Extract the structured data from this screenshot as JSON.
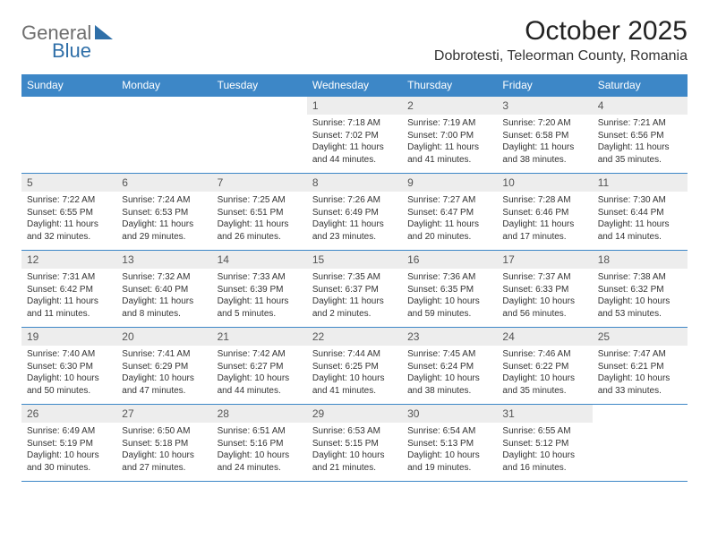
{
  "logo": {
    "word1": "General",
    "word2": "Blue"
  },
  "title": "October 2025",
  "location": "Dobrotesti, Teleorman County, Romania",
  "colors": {
    "header_bg": "#3d87c7",
    "header_text": "#ffffff",
    "daynum_bg": "#ededed",
    "border": "#3d87c7",
    "body_text": "#333333",
    "logo_general": "#6e6e6e",
    "logo_blue": "#2f6fa8"
  },
  "weekdays": [
    "Sunday",
    "Monday",
    "Tuesday",
    "Wednesday",
    "Thursday",
    "Friday",
    "Saturday"
  ],
  "weeks": [
    [
      {
        "n": "",
        "sr": "",
        "ss": "",
        "dl": ""
      },
      {
        "n": "",
        "sr": "",
        "ss": "",
        "dl": ""
      },
      {
        "n": "",
        "sr": "",
        "ss": "",
        "dl": ""
      },
      {
        "n": "1",
        "sr": "Sunrise: 7:18 AM",
        "ss": "Sunset: 7:02 PM",
        "dl": "Daylight: 11 hours and 44 minutes."
      },
      {
        "n": "2",
        "sr": "Sunrise: 7:19 AM",
        "ss": "Sunset: 7:00 PM",
        "dl": "Daylight: 11 hours and 41 minutes."
      },
      {
        "n": "3",
        "sr": "Sunrise: 7:20 AM",
        "ss": "Sunset: 6:58 PM",
        "dl": "Daylight: 11 hours and 38 minutes."
      },
      {
        "n": "4",
        "sr": "Sunrise: 7:21 AM",
        "ss": "Sunset: 6:56 PM",
        "dl": "Daylight: 11 hours and 35 minutes."
      }
    ],
    [
      {
        "n": "5",
        "sr": "Sunrise: 7:22 AM",
        "ss": "Sunset: 6:55 PM",
        "dl": "Daylight: 11 hours and 32 minutes."
      },
      {
        "n": "6",
        "sr": "Sunrise: 7:24 AM",
        "ss": "Sunset: 6:53 PM",
        "dl": "Daylight: 11 hours and 29 minutes."
      },
      {
        "n": "7",
        "sr": "Sunrise: 7:25 AM",
        "ss": "Sunset: 6:51 PM",
        "dl": "Daylight: 11 hours and 26 minutes."
      },
      {
        "n": "8",
        "sr": "Sunrise: 7:26 AM",
        "ss": "Sunset: 6:49 PM",
        "dl": "Daylight: 11 hours and 23 minutes."
      },
      {
        "n": "9",
        "sr": "Sunrise: 7:27 AM",
        "ss": "Sunset: 6:47 PM",
        "dl": "Daylight: 11 hours and 20 minutes."
      },
      {
        "n": "10",
        "sr": "Sunrise: 7:28 AM",
        "ss": "Sunset: 6:46 PM",
        "dl": "Daylight: 11 hours and 17 minutes."
      },
      {
        "n": "11",
        "sr": "Sunrise: 7:30 AM",
        "ss": "Sunset: 6:44 PM",
        "dl": "Daylight: 11 hours and 14 minutes."
      }
    ],
    [
      {
        "n": "12",
        "sr": "Sunrise: 7:31 AM",
        "ss": "Sunset: 6:42 PM",
        "dl": "Daylight: 11 hours and 11 minutes."
      },
      {
        "n": "13",
        "sr": "Sunrise: 7:32 AM",
        "ss": "Sunset: 6:40 PM",
        "dl": "Daylight: 11 hours and 8 minutes."
      },
      {
        "n": "14",
        "sr": "Sunrise: 7:33 AM",
        "ss": "Sunset: 6:39 PM",
        "dl": "Daylight: 11 hours and 5 minutes."
      },
      {
        "n": "15",
        "sr": "Sunrise: 7:35 AM",
        "ss": "Sunset: 6:37 PM",
        "dl": "Daylight: 11 hours and 2 minutes."
      },
      {
        "n": "16",
        "sr": "Sunrise: 7:36 AM",
        "ss": "Sunset: 6:35 PM",
        "dl": "Daylight: 10 hours and 59 minutes."
      },
      {
        "n": "17",
        "sr": "Sunrise: 7:37 AM",
        "ss": "Sunset: 6:33 PM",
        "dl": "Daylight: 10 hours and 56 minutes."
      },
      {
        "n": "18",
        "sr": "Sunrise: 7:38 AM",
        "ss": "Sunset: 6:32 PM",
        "dl": "Daylight: 10 hours and 53 minutes."
      }
    ],
    [
      {
        "n": "19",
        "sr": "Sunrise: 7:40 AM",
        "ss": "Sunset: 6:30 PM",
        "dl": "Daylight: 10 hours and 50 minutes."
      },
      {
        "n": "20",
        "sr": "Sunrise: 7:41 AM",
        "ss": "Sunset: 6:29 PM",
        "dl": "Daylight: 10 hours and 47 minutes."
      },
      {
        "n": "21",
        "sr": "Sunrise: 7:42 AM",
        "ss": "Sunset: 6:27 PM",
        "dl": "Daylight: 10 hours and 44 minutes."
      },
      {
        "n": "22",
        "sr": "Sunrise: 7:44 AM",
        "ss": "Sunset: 6:25 PM",
        "dl": "Daylight: 10 hours and 41 minutes."
      },
      {
        "n": "23",
        "sr": "Sunrise: 7:45 AM",
        "ss": "Sunset: 6:24 PM",
        "dl": "Daylight: 10 hours and 38 minutes."
      },
      {
        "n": "24",
        "sr": "Sunrise: 7:46 AM",
        "ss": "Sunset: 6:22 PM",
        "dl": "Daylight: 10 hours and 35 minutes."
      },
      {
        "n": "25",
        "sr": "Sunrise: 7:47 AM",
        "ss": "Sunset: 6:21 PM",
        "dl": "Daylight: 10 hours and 33 minutes."
      }
    ],
    [
      {
        "n": "26",
        "sr": "Sunrise: 6:49 AM",
        "ss": "Sunset: 5:19 PM",
        "dl": "Daylight: 10 hours and 30 minutes."
      },
      {
        "n": "27",
        "sr": "Sunrise: 6:50 AM",
        "ss": "Sunset: 5:18 PM",
        "dl": "Daylight: 10 hours and 27 minutes."
      },
      {
        "n": "28",
        "sr": "Sunrise: 6:51 AM",
        "ss": "Sunset: 5:16 PM",
        "dl": "Daylight: 10 hours and 24 minutes."
      },
      {
        "n": "29",
        "sr": "Sunrise: 6:53 AM",
        "ss": "Sunset: 5:15 PM",
        "dl": "Daylight: 10 hours and 21 minutes."
      },
      {
        "n": "30",
        "sr": "Sunrise: 6:54 AM",
        "ss": "Sunset: 5:13 PM",
        "dl": "Daylight: 10 hours and 19 minutes."
      },
      {
        "n": "31",
        "sr": "Sunrise: 6:55 AM",
        "ss": "Sunset: 5:12 PM",
        "dl": "Daylight: 10 hours and 16 minutes."
      },
      {
        "n": "",
        "sr": "",
        "ss": "",
        "dl": ""
      }
    ]
  ]
}
